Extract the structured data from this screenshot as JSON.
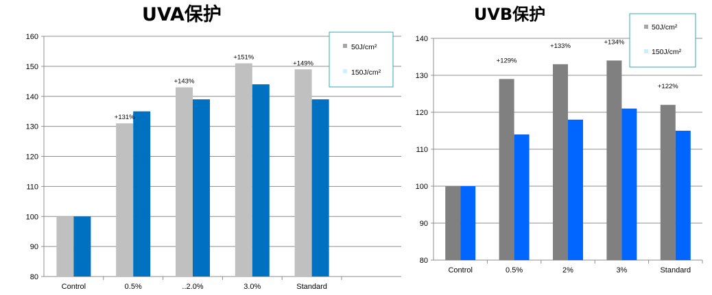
{
  "chart_data": [
    {
      "type": "bar",
      "title": "UVA保护",
      "categories": [
        "Control",
        "0.5%",
        "..2.0%",
        "3.0%",
        "Standard"
      ],
      "series": [
        {
          "name": "50J/cm²",
          "values": [
            100,
            131,
            143,
            151,
            149
          ],
          "color": "#c0c0c0"
        },
        {
          "name": "150J/cm²",
          "values": [
            100,
            135,
            139,
            144,
            139
          ],
          "color": "#0070c0"
        }
      ],
      "annotations": [
        "",
        "+131%",
        "+143%",
        "+151%",
        "+149%"
      ],
      "ylim": [
        80,
        160
      ],
      "yticks": [
        80,
        90,
        100,
        110,
        120,
        130,
        140,
        150,
        160
      ],
      "grid": true,
      "legend_position": "top-right",
      "legend_border_color": "#31a9b8"
    },
    {
      "type": "bar",
      "title": "UVB保护",
      "categories": [
        "Control",
        "0.5%",
        "2%",
        "3%",
        "Standard"
      ],
      "series": [
        {
          "name": "50J/cm²",
          "values": [
            100,
            129,
            133,
            134,
            122
          ],
          "color": "#808080"
        },
        {
          "name": "150J/cm²",
          "values": [
            100,
            114,
            118,
            121,
            115
          ],
          "color": "#0066ff"
        }
      ],
      "annotations": [
        "",
        "+129%",
        "+133%",
        "+134%",
        "+122%"
      ],
      "ylim": [
        80,
        140
      ],
      "yticks": [
        80,
        90,
        100,
        110,
        120,
        130,
        140
      ],
      "grid": true,
      "legend_position": "top-right",
      "legend_border_color": "#31a9b8"
    }
  ]
}
